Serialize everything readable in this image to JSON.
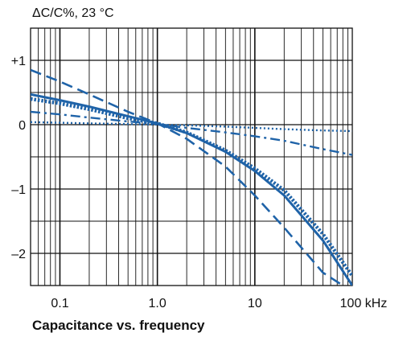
{
  "chart_data": {
    "type": "line",
    "title": "",
    "ylabel": "ΔC/C%, 23 °C",
    "caption": "Capacitance vs. frequency",
    "x_scale": "log",
    "xlim": [
      0.05,
      100
    ],
    "ylim": [
      -2.5,
      1.5
    ],
    "grid": true,
    "x_ticks": [
      {
        "value": 0.1,
        "label": "0.1"
      },
      {
        "value": 1,
        "label": "1.0"
      },
      {
        "value": 10,
        "label": "10"
      },
      {
        "value": 100,
        "label": "100 kHz"
      }
    ],
    "y_ticks": [
      {
        "value": 1,
        "label": "+1"
      },
      {
        "value": 0,
        "label": "0"
      },
      {
        "value": -1,
        "label": "–1"
      },
      {
        "value": -2,
        "label": "–2"
      }
    ],
    "series_color": "#1f63a8",
    "series": [
      {
        "style": "solid",
        "x": [
          0.05,
          0.1,
          0.2,
          0.5,
          1,
          2,
          5,
          10,
          20,
          50,
          100
        ],
        "y": [
          0.47,
          0.38,
          0.28,
          0.13,
          0.02,
          -0.13,
          -0.42,
          -0.72,
          -1.1,
          -1.8,
          -2.5
        ]
      },
      {
        "style": "dotted",
        "x": [
          0.05,
          0.1,
          0.2,
          0.5,
          1,
          2,
          5,
          10,
          20,
          50,
          100
        ],
        "y": [
          0.4,
          0.33,
          0.24,
          0.1,
          0.02,
          -0.12,
          -0.4,
          -0.68,
          -1.02,
          -1.7,
          -2.35
        ]
      },
      {
        "style": "dashed",
        "x": [
          0.05,
          0.1,
          0.2,
          0.5,
          1,
          2,
          5,
          10,
          20,
          50,
          80
        ],
        "y": [
          0.85,
          0.67,
          0.47,
          0.2,
          0.02,
          -0.22,
          -0.65,
          -1.1,
          -1.6,
          -2.3,
          -2.5
        ]
      },
      {
        "style": "dashdot",
        "x": [
          0.05,
          0.1,
          0.2,
          0.5,
          1,
          2,
          5,
          10,
          20,
          50,
          100
        ],
        "y": [
          0.2,
          0.16,
          0.11,
          0.05,
          0.01,
          -0.05,
          -0.12,
          -0.18,
          -0.25,
          -0.38,
          -0.47
        ]
      },
      {
        "style": "dotted-fine",
        "x": [
          0.05,
          0.1,
          0.2,
          0.5,
          1,
          2,
          5,
          10,
          20,
          50,
          100
        ],
        "y": [
          0.04,
          0.03,
          0.02,
          0.01,
          0,
          -0.01,
          -0.03,
          -0.05,
          -0.07,
          -0.09,
          -0.1
        ]
      }
    ]
  }
}
